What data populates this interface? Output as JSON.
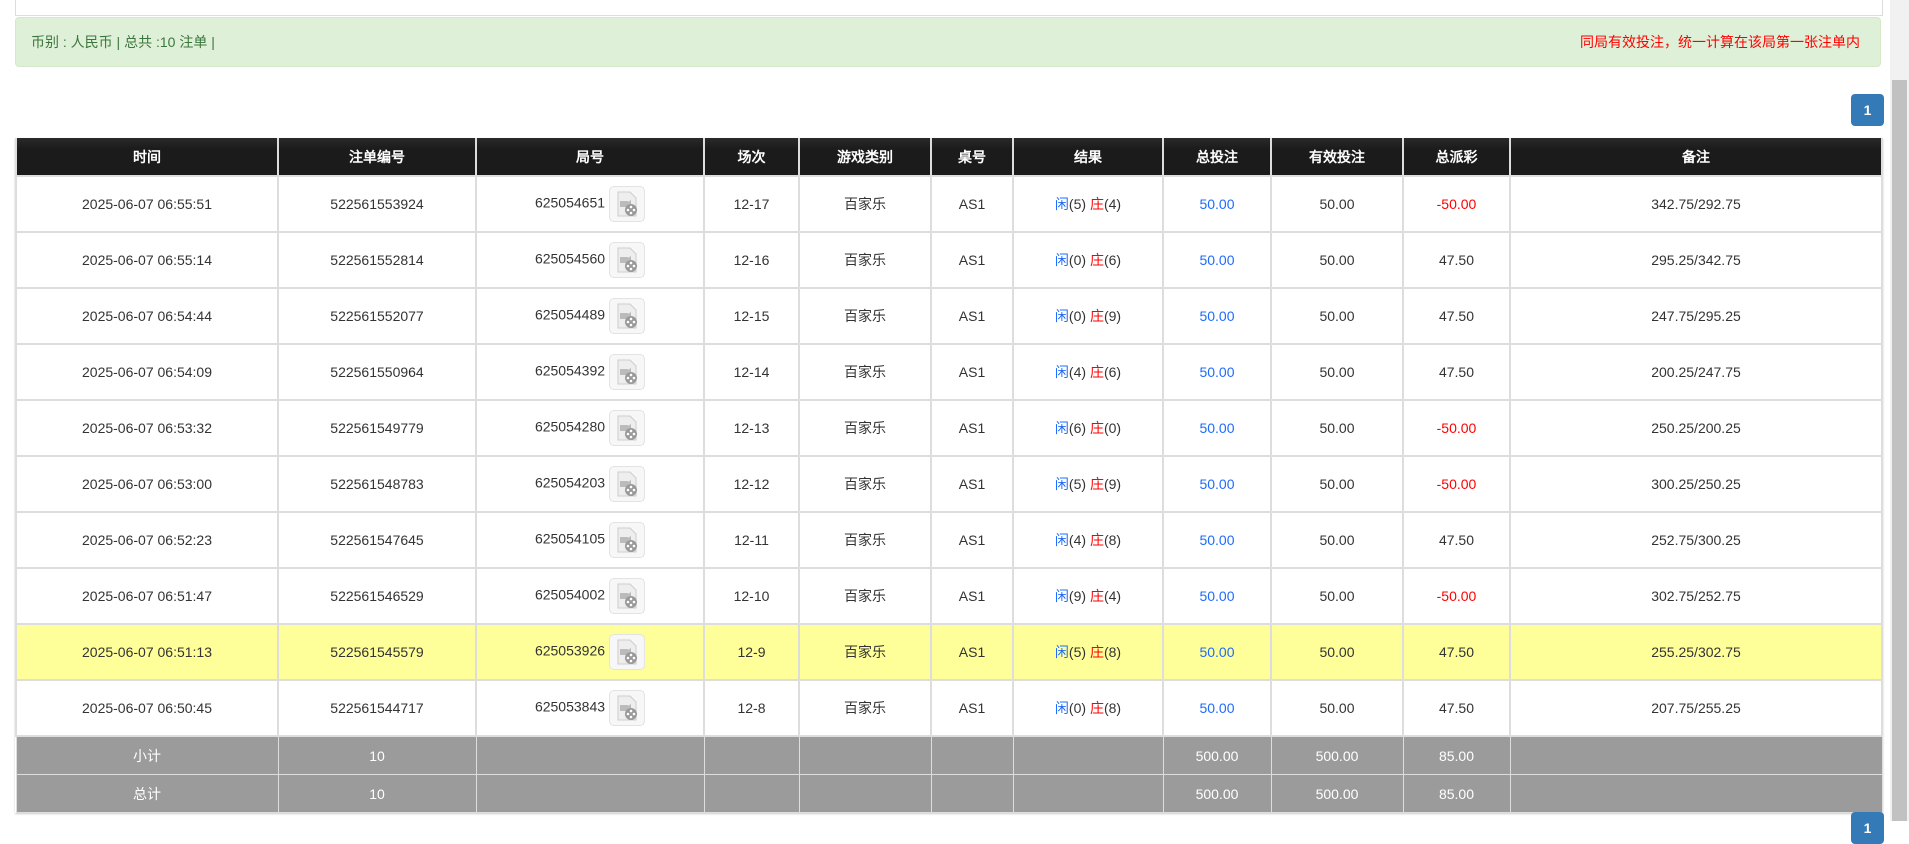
{
  "summary": {
    "left": "币别 : 人民币 | 总共 :10 注单 |",
    "right": "同局有效投注，统一计算在该局第一张注单内"
  },
  "pagination": {
    "page": "1"
  },
  "colors": {
    "player": "#1e6bff",
    "banker": "#ff0000",
    "highlight": "#ffff99",
    "header": "#1b1b1b",
    "summary": "#9b9b9b",
    "page_button": "#337ab7"
  },
  "headers": [
    "时间",
    "注单编号",
    "局号",
    "场次",
    "游戏类别",
    "桌号",
    "结果",
    "总投注",
    "有效投注",
    "总派彩",
    "备注"
  ],
  "result_labels": {
    "player": "闲",
    "banker": "庄"
  },
  "rows": [
    {
      "time": "2025-06-07 06:55:51",
      "bet_id": "522561553924",
      "round": "625054651",
      "shoe": "12-17",
      "game": "百家乐",
      "table": "AS1",
      "player": "(5)",
      "banker": "(4)",
      "total_bet": "50.00",
      "valid_bet": "50.00",
      "payout": "-50.00",
      "negative": true,
      "note": "342.75/292.75"
    },
    {
      "time": "2025-06-07 06:55:14",
      "bet_id": "522561552814",
      "round": "625054560",
      "shoe": "12-16",
      "game": "百家乐",
      "table": "AS1",
      "player": "(0)",
      "banker": "(6)",
      "total_bet": "50.00",
      "valid_bet": "50.00",
      "payout": "47.50",
      "negative": false,
      "note": "295.25/342.75"
    },
    {
      "time": "2025-06-07 06:54:44",
      "bet_id": "522561552077",
      "round": "625054489",
      "shoe": "12-15",
      "game": "百家乐",
      "table": "AS1",
      "player": "(0)",
      "banker": "(9)",
      "total_bet": "50.00",
      "valid_bet": "50.00",
      "payout": "47.50",
      "negative": false,
      "note": "247.75/295.25"
    },
    {
      "time": "2025-06-07 06:54:09",
      "bet_id": "522561550964",
      "round": "625054392",
      "shoe": "12-14",
      "game": "百家乐",
      "table": "AS1",
      "player": "(4)",
      "banker": "(6)",
      "total_bet": "50.00",
      "valid_bet": "50.00",
      "payout": "47.50",
      "negative": false,
      "note": "200.25/247.75"
    },
    {
      "time": "2025-06-07 06:53:32",
      "bet_id": "522561549779",
      "round": "625054280",
      "shoe": "12-13",
      "game": "百家乐",
      "table": "AS1",
      "player": "(6)",
      "banker": "(0)",
      "total_bet": "50.00",
      "valid_bet": "50.00",
      "payout": "-50.00",
      "negative": true,
      "note": "250.25/200.25"
    },
    {
      "time": "2025-06-07 06:53:00",
      "bet_id": "522561548783",
      "round": "625054203",
      "shoe": "12-12",
      "game": "百家乐",
      "table": "AS1",
      "player": "(5)",
      "banker": "(9)",
      "total_bet": "50.00",
      "valid_bet": "50.00",
      "payout": "-50.00",
      "negative": true,
      "note": "300.25/250.25"
    },
    {
      "time": "2025-06-07 06:52:23",
      "bet_id": "522561547645",
      "round": "625054105",
      "shoe": "12-11",
      "game": "百家乐",
      "table": "AS1",
      "player": "(4)",
      "banker": "(8)",
      "total_bet": "50.00",
      "valid_bet": "50.00",
      "payout": "47.50",
      "negative": false,
      "note": "252.75/300.25"
    },
    {
      "time": "2025-06-07 06:51:47",
      "bet_id": "522561546529",
      "round": "625054002",
      "shoe": "12-10",
      "game": "百家乐",
      "table": "AS1",
      "player": "(9)",
      "banker": "(4)",
      "total_bet": "50.00",
      "valid_bet": "50.00",
      "payout": "-50.00",
      "negative": true,
      "note": "302.75/252.75"
    },
    {
      "time": "2025-06-07 06:51:13",
      "bet_id": "522561545579",
      "round": "625053926",
      "shoe": "12-9",
      "game": "百家乐",
      "table": "AS1",
      "player": "(5)",
      "banker": "(8)",
      "total_bet": "50.00",
      "valid_bet": "50.00",
      "payout": "47.50",
      "negative": false,
      "note": "255.25/302.75",
      "highlighted": true
    },
    {
      "time": "2025-06-07 06:50:45",
      "bet_id": "522561544717",
      "round": "625053843",
      "shoe": "12-8",
      "game": "百家乐",
      "table": "AS1",
      "player": "(0)",
      "banker": "(8)",
      "total_bet": "50.00",
      "valid_bet": "50.00",
      "payout": "47.50",
      "negative": false,
      "note": "207.75/255.25"
    }
  ],
  "subtotal": {
    "label": "小计",
    "count": "10",
    "total_bet": "500.00",
    "valid_bet": "500.00",
    "payout": "85.00"
  },
  "total": {
    "label": "总计",
    "count": "10",
    "total_bet": "500.00",
    "valid_bet": "500.00",
    "payout": "85.00"
  }
}
